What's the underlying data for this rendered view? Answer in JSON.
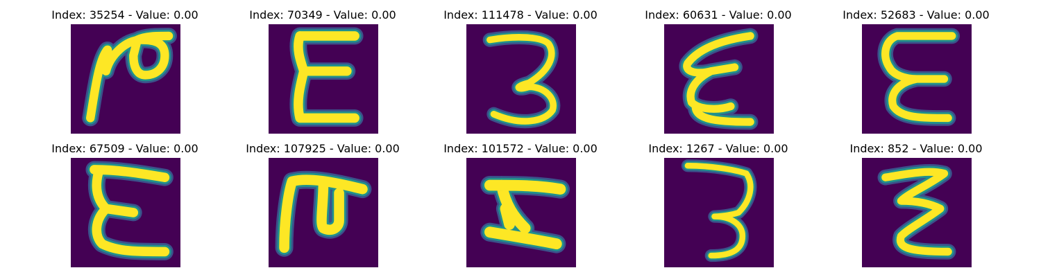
{
  "panels": [
    {
      "index_label": "Index: 35254 - Value: 0.00",
      "glyph": "glyph-2-icon"
    },
    {
      "index_label": "Index: 70349 - Value: 0.00",
      "glyph": "glyph-e-icon"
    },
    {
      "index_label": "Index: 111478 - Value: 0.00",
      "glyph": "glyph-3-icon"
    },
    {
      "index_label": "Index: 60631 - Value: 0.00",
      "glyph": "glyph-e-slanted-icon"
    },
    {
      "index_label": "Index: 52683 - Value: 0.00",
      "glyph": "glyph-e-round-icon"
    },
    {
      "index_label": "Index: 67509 - Value: 0.00",
      "glyph": "glyph-e-wide-icon"
    },
    {
      "index_label": "Index: 107925 - Value: 0.00",
      "glyph": "glyph-e-rotated-icon"
    },
    {
      "index_label": "Index: 101572 - Value: 0.00",
      "glyph": "glyph-e-flat-icon"
    },
    {
      "index_label": "Index: 1267 - Value: 0.00",
      "glyph": "glyph-3-thin-icon"
    },
    {
      "index_label": "Index: 852 - Value: 0.00",
      "glyph": "glyph-z-icon"
    }
  ],
  "colors": {
    "background": "#440154",
    "stroke_core": "#fde725",
    "stroke_edge": "#21918c",
    "stroke_halo": "#3b528b"
  }
}
